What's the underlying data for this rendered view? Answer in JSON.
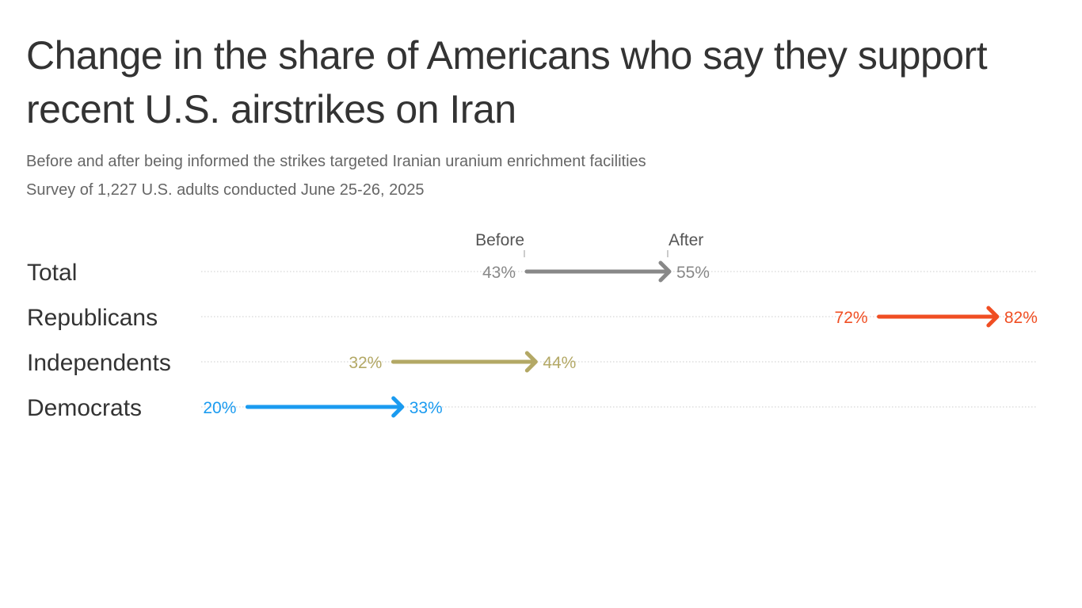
{
  "title": "Change in the share of Americans who say they support recent U.S. airstrikes on Iran",
  "subtitle": "Before and after being informed the strikes targeted Iranian uranium enrichment facilities",
  "note": "Survey of 1,227 U.S. adults conducted June 25-26, 2025",
  "chart_data": {
    "type": "arrow",
    "title": "Change in the share of Americans who say they support recent U.S. airstrikes on Iran",
    "legend": {
      "before": "Before",
      "after": "After"
    },
    "grid": "dotted horizontal row lines",
    "categories": [
      "Total",
      "Republicans",
      "Independents",
      "Democrats"
    ],
    "series": [
      {
        "category": "Total",
        "before": 43,
        "after": 55,
        "before_label": "43%",
        "after_label": "55%",
        "color": "#888888"
      },
      {
        "category": "Republicans",
        "before": 72,
        "after": 82,
        "before_label": "72%",
        "after_label": "82%",
        "color": "#f04e23"
      },
      {
        "category": "Independents",
        "before": 32,
        "after": 44,
        "before_label": "32%",
        "after_label": "44%",
        "color": "#b3a865"
      },
      {
        "category": "Democrats",
        "before": 20,
        "after": 33,
        "before_label": "20%",
        "after_label": "33%",
        "color": "#1a9bf0"
      }
    ]
  }
}
